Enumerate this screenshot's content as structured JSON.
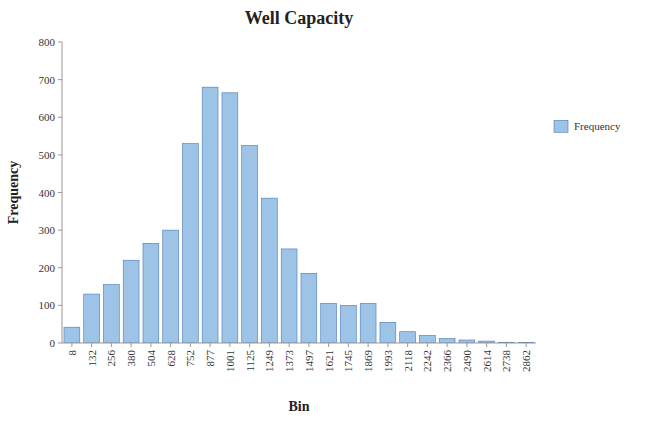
{
  "chart_data": {
    "type": "bar",
    "title": "Well Capacity",
    "x_label": "Bin",
    "y_label": "Frequency",
    "categories": [
      "8",
      "132",
      "256",
      "380",
      "504",
      "628",
      "752",
      "877",
      "1001",
      "1125",
      "1249",
      "1373",
      "1497",
      "1621",
      "1745",
      "1869",
      "1993",
      "2118",
      "2242",
      "2366",
      "2490",
      "2614",
      "2738",
      "2862"
    ],
    "series": [
      {
        "name": "Frequency",
        "color": "#9DC3E6",
        "values": [
          42,
          130,
          155,
          220,
          265,
          300,
          530,
          680,
          665,
          525,
          385,
          250,
          185,
          105,
          100,
          105,
          55,
          30,
          20,
          12,
          8,
          5,
          2,
          1
        ]
      }
    ],
    "ylim": [
      0,
      800
    ],
    "yticks": [
      0,
      100,
      200,
      300,
      400,
      500,
      600,
      700,
      800
    ],
    "grid": false,
    "legend": "right"
  }
}
